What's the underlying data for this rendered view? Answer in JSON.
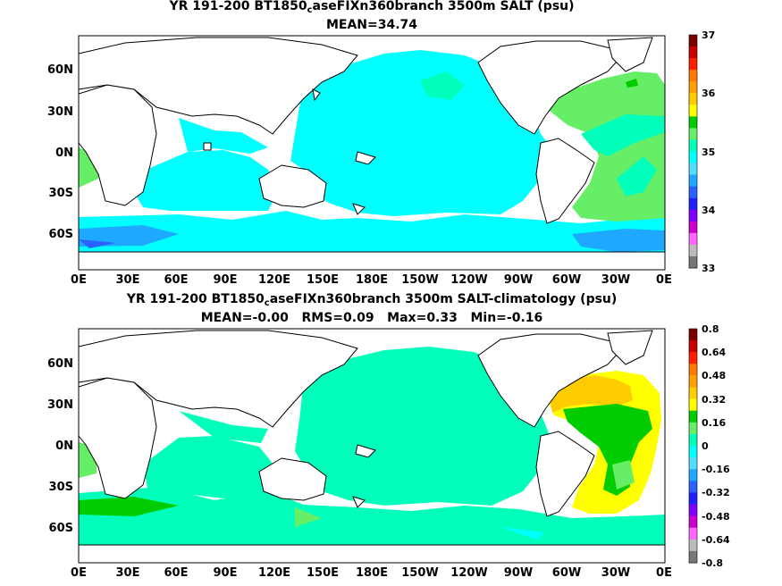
{
  "panels": [
    {
      "title_pre": "YR 191-200 BT1850",
      "title_sub": "c",
      "title_post": "aseFIXn360branch 3500m SALT (psu)",
      "stats": "MEAN=34.74",
      "colorbar_ticks": [
        "37",
        "36",
        "35",
        "34",
        "33"
      ],
      "colorbar_colors": [
        "#7a0000",
        "#c80000",
        "#ff2000",
        "#ff7a00",
        "#ff9f00",
        "#ffcc00",
        "#ffff00",
        "#00cc00",
        "#66ee66",
        "#00ffbb",
        "#00ffff",
        "#55ddff",
        "#1fa8ff",
        "#2b62ff",
        "#2020ff",
        "#8000ff",
        "#cc00cc",
        "#ff66ff",
        "#bbbbbb",
        "#777777"
      ]
    },
    {
      "title_pre": "YR 191-200 BT1850",
      "title_sub": "c",
      "title_post": "aseFIXn360branch 3500m SALT-climatology (psu)",
      "stats": "MEAN=-0.00   RMS=0.09   Max=0.33   Min=-0.16",
      "colorbar_ticks": [
        "0.8",
        "0.64",
        "0.48",
        "0.32",
        "0.16",
        "0",
        "-0.16",
        "-0.32",
        "-0.48",
        "-0.64",
        "-0.8"
      ],
      "colorbar_colors": [
        "#7a0000",
        "#c80000",
        "#ff2000",
        "#ff7a00",
        "#ff9f00",
        "#ffcc00",
        "#ffff00",
        "#00cc00",
        "#66ee66",
        "#00ffbb",
        "#00ffff",
        "#55ddff",
        "#1fa8ff",
        "#2b62ff",
        "#2020ff",
        "#8000ff",
        "#cc00cc",
        "#ff66ff",
        "#bbbbbb",
        "#777777"
      ]
    }
  ],
  "lat_labels": [
    "60N",
    "30N",
    "0N",
    "30S",
    "60S"
  ],
  "lon_labels": [
    "0E",
    "30E",
    "60E",
    "90E",
    "120E",
    "150E",
    "180E",
    "150W",
    "120W",
    "90W",
    "60W",
    "30W",
    "0E"
  ]
}
